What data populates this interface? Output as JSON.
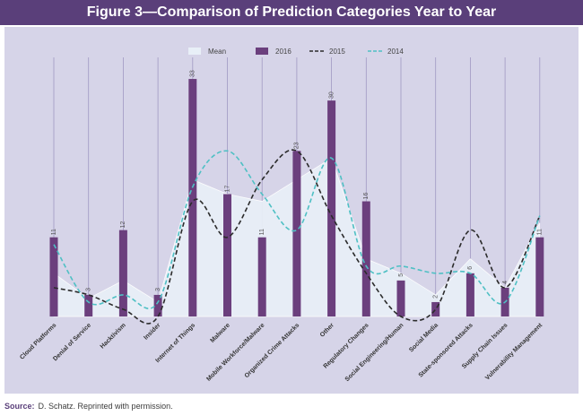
{
  "figure": {
    "title": "Figure 3—Comparison of Prediction Categories Year to Year",
    "source_label": "Source:",
    "source_text": "D. Schatz. Reprinted with permission."
  },
  "colors": {
    "title_bg": "#5a3f7a",
    "panel_bg": "#d6d4e8",
    "bar": "#6b3f7d",
    "mean_fill": "#e8eff7",
    "line_2015": "#2b2b2b",
    "line_2014": "#4fc0c4",
    "gridline": "#8a7fb3"
  },
  "chart_data": {
    "type": "bar",
    "categories": [
      "Cloud Platforms",
      "Denial of Service",
      "Hacktivism",
      "Insider",
      "Internet of Things",
      "Malware",
      "Mobile Workforce/Malware",
      "Organized Crime Attacks",
      "Other",
      "Regulatory Changes",
      "Social Engineering/Human",
      "Social Media",
      "State-sponsored Attacks",
      "Supply Chain Issues",
      "Vulnerability Management"
    ],
    "ylim": [
      0,
      35
    ],
    "grid": true,
    "legend_position": "top",
    "series": [
      {
        "name": "Mean",
        "type": "area",
        "values": [
          6,
          2.5,
          5,
          2,
          19,
          17,
          16,
          19,
          22,
          8,
          6,
          3,
          8,
          4,
          13
        ]
      },
      {
        "name": "2016",
        "type": "bar",
        "values": [
          11,
          3,
          12,
          3,
          33,
          17,
          11,
          23,
          30,
          16,
          5,
          2,
          6,
          4,
          11
        ]
      },
      {
        "name": "2015",
        "type": "line",
        "style": "dashed",
        "values": [
          4,
          3,
          1,
          0,
          16,
          11,
          19,
          23,
          14,
          6,
          0,
          1,
          12,
          4,
          14
        ]
      },
      {
        "name": "2014",
        "type": "line",
        "style": "dashed",
        "values": [
          10,
          2,
          3,
          2,
          18,
          23,
          17,
          12,
          22,
          7,
          7,
          6,
          6,
          2,
          14
        ]
      }
    ],
    "bar_labels": [
      "11",
      "3",
      "12",
      "3",
      "33",
      "17",
      "11",
      "23",
      "30",
      "16",
      "5",
      "2",
      "6",
      "4",
      "11"
    ]
  }
}
